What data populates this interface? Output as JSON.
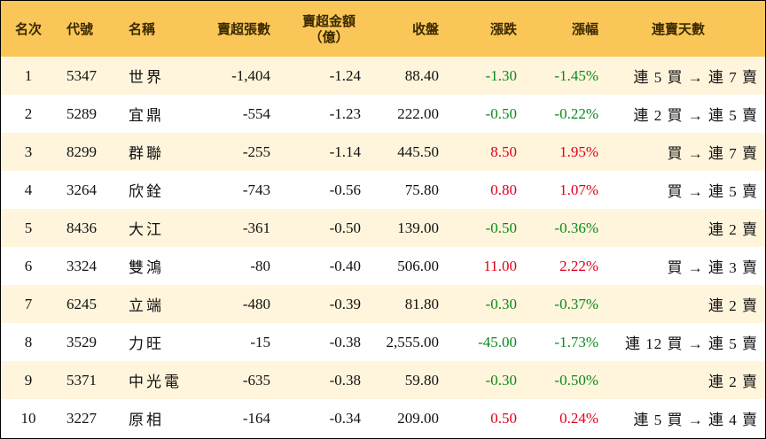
{
  "headers": {
    "rank": "名次",
    "code": "代號",
    "name": "名稱",
    "net_sell": "賣超張數",
    "net_amount_line1": "賣超金額",
    "net_amount_line2": "（億）",
    "close": "收盤",
    "change": "漲跌",
    "change_pct": "漲幅",
    "streak": "連賣天數"
  },
  "colors": {
    "header_bg": "#fbc658",
    "stripe_bg": "#fff5dc",
    "up": "#e0001b",
    "down": "#0a8a1a"
  },
  "rows": [
    {
      "rank": "1",
      "code": "5347",
      "name": "世界",
      "net_sell": "-1,404",
      "net_amount": "-1.24",
      "close": "88.40",
      "change": "-1.30",
      "change_pct": "-1.45%",
      "direction": "down",
      "streak": "連 5 買 → 連 7 賣"
    },
    {
      "rank": "2",
      "code": "5289",
      "name": "宜鼎",
      "net_sell": "-554",
      "net_amount": "-1.23",
      "close": "222.00",
      "change": "-0.50",
      "change_pct": "-0.22%",
      "direction": "down",
      "streak": "連 2 買 → 連 5 賣"
    },
    {
      "rank": "3",
      "code": "8299",
      "name": "群聯",
      "net_sell": "-255",
      "net_amount": "-1.14",
      "close": "445.50",
      "change": "8.50",
      "change_pct": "1.95%",
      "direction": "up",
      "streak": "買 → 連 7 賣"
    },
    {
      "rank": "4",
      "code": "3264",
      "name": "欣銓",
      "net_sell": "-743",
      "net_amount": "-0.56",
      "close": "75.80",
      "change": "0.80",
      "change_pct": "1.07%",
      "direction": "up",
      "streak": "買 → 連 5 賣"
    },
    {
      "rank": "5",
      "code": "8436",
      "name": "大江",
      "net_sell": "-361",
      "net_amount": "-0.50",
      "close": "139.00",
      "change": "-0.50",
      "change_pct": "-0.36%",
      "direction": "down",
      "streak": "連 2 賣"
    },
    {
      "rank": "6",
      "code": "3324",
      "name": "雙鴻",
      "net_sell": "-80",
      "net_amount": "-0.40",
      "close": "506.00",
      "change": "11.00",
      "change_pct": "2.22%",
      "direction": "up",
      "streak": "買 → 連 3 賣"
    },
    {
      "rank": "7",
      "code": "6245",
      "name": "立端",
      "net_sell": "-480",
      "net_amount": "-0.39",
      "close": "81.80",
      "change": "-0.30",
      "change_pct": "-0.37%",
      "direction": "down",
      "streak": "連 2 賣"
    },
    {
      "rank": "8",
      "code": "3529",
      "name": "力旺",
      "net_sell": "-15",
      "net_amount": "-0.38",
      "close": "2,555.00",
      "change": "-45.00",
      "change_pct": "-1.73%",
      "direction": "down",
      "streak": "連 12 買 → 連 5 賣"
    },
    {
      "rank": "9",
      "code": "5371",
      "name": "中光電",
      "net_sell": "-635",
      "net_amount": "-0.38",
      "close": "59.80",
      "change": "-0.30",
      "change_pct": "-0.50%",
      "direction": "down",
      "streak": "連 2 賣"
    },
    {
      "rank": "10",
      "code": "3227",
      "name": "原相",
      "net_sell": "-164",
      "net_amount": "-0.34",
      "close": "209.00",
      "change": "0.50",
      "change_pct": "0.24%",
      "direction": "up",
      "streak": "連 5 買 → 連 4 賣"
    }
  ]
}
